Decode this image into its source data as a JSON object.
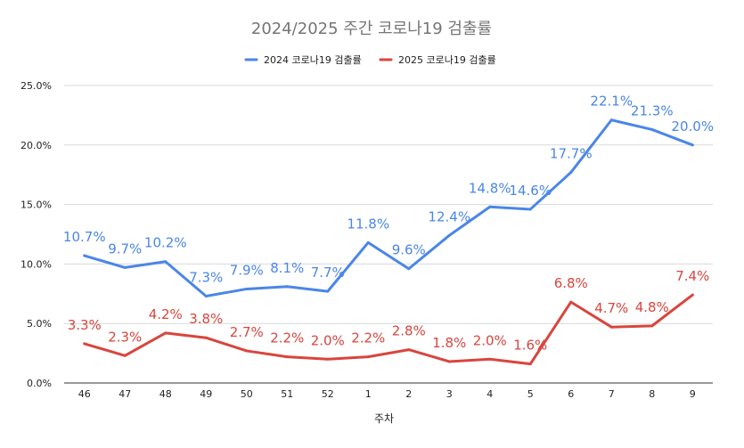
{
  "chart_data": {
    "type": "line",
    "title": "2024/2025 주간 코로나19 검출률",
    "xlabel": "주차",
    "ylabel": "",
    "categories": [
      "46",
      "47",
      "48",
      "49",
      "50",
      "51",
      "52",
      "1",
      "2",
      "3",
      "4",
      "5",
      "6",
      "7",
      "8",
      "9"
    ],
    "y_ticks": [
      "0.0%",
      "5.0%",
      "10.0%",
      "15.0%",
      "20.0%",
      "25.0%"
    ],
    "ylim": [
      0,
      25
    ],
    "grid": true,
    "legend_position": "top",
    "series": [
      {
        "name": "2024 코로나19 검출률",
        "color": "#4a86e8",
        "values": [
          10.7,
          9.7,
          10.2,
          7.3,
          7.9,
          8.1,
          7.7,
          11.8,
          9.6,
          12.4,
          14.8,
          14.6,
          17.7,
          22.1,
          21.3,
          20.0
        ],
        "labels": [
          "10.7%",
          "9.7%",
          "10.2%",
          "7.3%",
          "7.9%",
          "8.1%",
          "7.7%",
          "11.8%",
          "9.6%",
          "12.4%",
          "14.8%",
          "14.6%",
          "17.7%",
          "22.1%",
          "21.3%",
          "20.0%"
        ]
      },
      {
        "name": "2025 코로나19 검출률",
        "color": "#d9453d",
        "values": [
          3.3,
          2.3,
          4.2,
          3.8,
          2.7,
          2.2,
          2.0,
          2.2,
          2.8,
          1.8,
          2.0,
          1.6,
          6.8,
          4.7,
          4.8,
          7.4
        ],
        "labels": [
          "3.3%",
          "2.3%",
          "4.2%",
          "3.8%",
          "2.7%",
          "2.2%",
          "2.0%",
          "2.2%",
          "2.8%",
          "1.8%",
          "2.0%",
          "1.6%",
          "6.8%",
          "4.7%",
          "4.8%",
          "7.4%"
        ]
      }
    ]
  }
}
